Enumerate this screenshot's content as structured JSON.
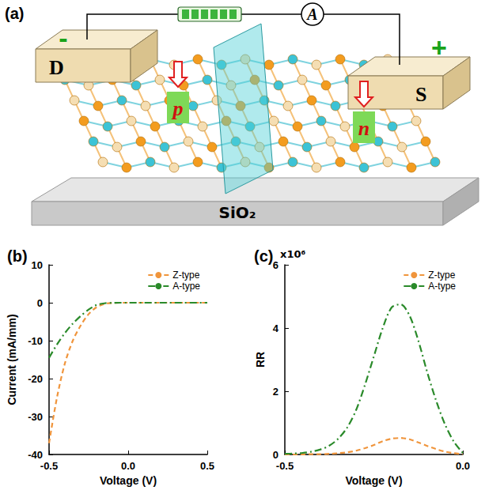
{
  "diagram": {
    "panel": "(a)",
    "electrodes": [
      {
        "label": "D",
        "sign": "-"
      },
      {
        "label": "S",
        "sign": "+"
      }
    ],
    "regions": [
      "p",
      "n"
    ],
    "meter": "A",
    "substrate": "SiO₂"
  },
  "chart_data": [
    {
      "type": "line",
      "title": "(b)",
      "xlabel": "Voltage (V)",
      "ylabel": "Current (mA/mm)",
      "x": [
        -0.5,
        -0.45,
        -0.4,
        -0.35,
        -0.3,
        -0.25,
        -0.2,
        -0.15,
        -0.1,
        -0.05,
        0,
        0.05,
        0.1,
        0.15,
        0.2,
        0.25,
        0.3,
        0.35,
        0.4,
        0.45,
        0.5
      ],
      "series": [
        {
          "name": "Z-type",
          "color": "#f0953c",
          "line_style": "dashed",
          "marker": "none",
          "values": [
            -37,
            -25,
            -16,
            -10,
            -6,
            -3,
            -1.2,
            -0.3,
            -0.05,
            0,
            0,
            0,
            0,
            0,
            0,
            0,
            0,
            0,
            0,
            0,
            0
          ]
        },
        {
          "name": "A-type",
          "color": "#2a8a2a",
          "line_style": "dashdot",
          "marker": "none",
          "values": [
            -14.5,
            -11,
            -8,
            -5.5,
            -3.5,
            -1.8,
            -0.6,
            -0.15,
            -0.03,
            0,
            0,
            0,
            0,
            0,
            0,
            0,
            0,
            0,
            0,
            0,
            0
          ]
        }
      ],
      "xlim": [
        -0.5,
        0.5
      ],
      "xticks": [
        -0.5,
        {
          "value": 0,
          "label": "0.0"
        },
        0.5
      ],
      "ylim": [
        -40,
        10
      ],
      "yticks": [
        -40,
        -30,
        -20,
        -10,
        0,
        10
      ],
      "grid": false,
      "legend": "upper right"
    },
    {
      "type": "line",
      "title": "(c)",
      "xlabel": "Voltage (V)",
      "ylabel": "RR",
      "annotation": "x10⁶",
      "x": [
        -0.5,
        -0.475,
        -0.45,
        -0.425,
        -0.4,
        -0.375,
        -0.35,
        -0.325,
        -0.3,
        -0.275,
        -0.25,
        -0.225,
        -0.2,
        -0.175,
        -0.15,
        -0.125,
        -0.1,
        -0.075,
        -0.05,
        -0.025,
        0
      ],
      "series": [
        {
          "name": "Z-type",
          "color": "#f0953c",
          "line_style": "dashed",
          "marker": "none",
          "values": [
            0,
            0,
            0,
            0.01,
            0.01,
            0.02,
            0.04,
            0.07,
            0.12,
            0.2,
            0.3,
            0.42,
            0.5,
            0.52,
            0.48,
            0.38,
            0.27,
            0.17,
            0.09,
            0.04,
            0.01
          ]
        },
        {
          "name": "A-type",
          "color": "#2a8a2a",
          "line_style": "dashdot",
          "marker": "none",
          "values": [
            0.02,
            0.03,
            0.05,
            0.09,
            0.16,
            0.28,
            0.5,
            0.85,
            1.4,
            2.2,
            3.1,
            4.0,
            4.65,
            4.75,
            4.4,
            3.6,
            2.6,
            1.7,
            0.95,
            0.4,
            0.05
          ]
        }
      ],
      "xlim": [
        -0.5,
        0
      ],
      "xticks": [
        -0.5,
        {
          "value": 0,
          "label": "0.0"
        }
      ],
      "ylim": [
        0,
        6
      ],
      "yticks": [
        0,
        2,
        4,
        6
      ],
      "grid": false,
      "legend": "upper right"
    }
  ]
}
